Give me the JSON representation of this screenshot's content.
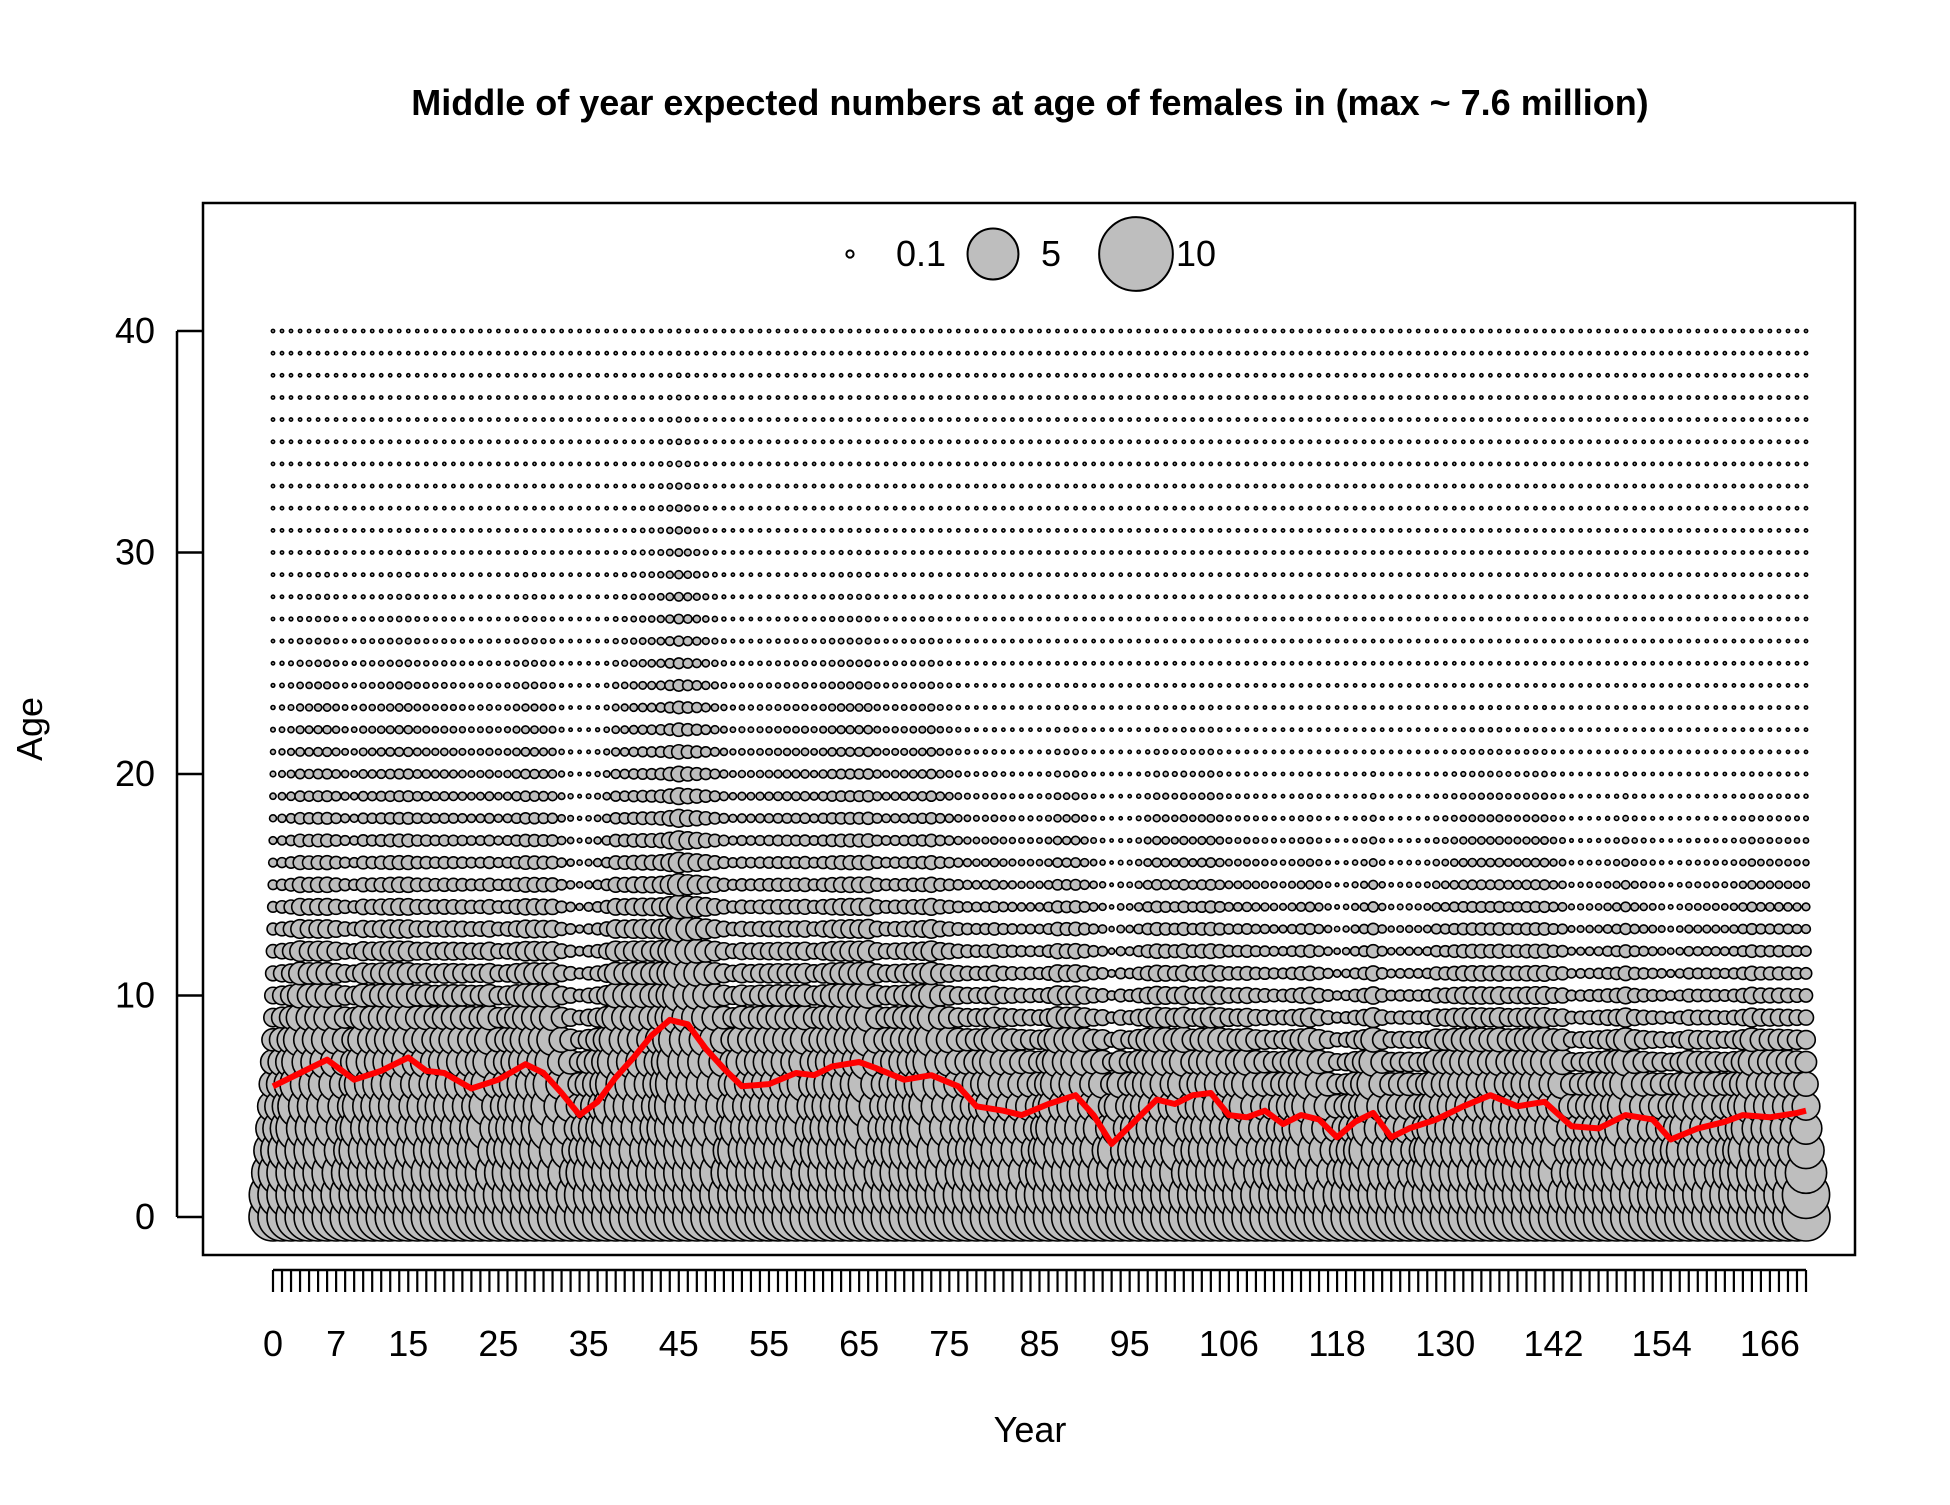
{
  "chart_data": {
    "type": "scatter",
    "subtype": "bubble",
    "title": "Middle of year expected numbers at age of females in (max ~ 7.6 million)",
    "xlabel": "Year",
    "ylabel": "Age",
    "xlim": [
      0,
      170
    ],
    "ylim": [
      -1.6,
      45.4
    ],
    "x_tick_labels": [
      "0",
      "7",
      "15",
      "25",
      "35",
      "45",
      "55",
      "65",
      "75",
      "85",
      "95",
      "106",
      "118",
      "130",
      "142",
      "154",
      "166"
    ],
    "y_ticks": [
      0,
      10,
      20,
      30,
      40
    ],
    "ages": {
      "min": 0,
      "max": 40
    },
    "legend": {
      "position": "top-center",
      "entries": [
        {
          "label": "0.1",
          "value": 0.1
        },
        {
          "label": "5",
          "value": 5
        },
        {
          "label": "10",
          "value": 10
        }
      ]
    },
    "bubble_fill": "#bebebe",
    "bubble_stroke": "#000000",
    "mean_age_color": "#ff0000",
    "mean_age_line": [
      [
        0,
        5.9
      ],
      [
        3,
        6.5
      ],
      [
        6,
        7.1
      ],
      [
        9,
        6.2
      ],
      [
        12,
        6.6
      ],
      [
        15,
        7.2
      ],
      [
        17,
        6.6
      ],
      [
        19,
        6.5
      ],
      [
        22,
        5.8
      ],
      [
        25,
        6.2
      ],
      [
        28,
        6.9
      ],
      [
        30,
        6.5
      ],
      [
        32,
        5.6
      ],
      [
        34,
        4.6
      ],
      [
        36,
        5.2
      ],
      [
        38,
        6.3
      ],
      [
        40,
        7.2
      ],
      [
        42,
        8.2
      ],
      [
        44,
        8.9
      ],
      [
        46,
        8.7
      ],
      [
        48,
        7.6
      ],
      [
        50,
        6.7
      ],
      [
        52,
        5.9
      ],
      [
        55,
        6.0
      ],
      [
        58,
        6.5
      ],
      [
        60,
        6.4
      ],
      [
        62,
        6.8
      ],
      [
        65,
        7.0
      ],
      [
        67,
        6.7
      ],
      [
        70,
        6.2
      ],
      [
        73,
        6.4
      ],
      [
        76,
        5.9
      ],
      [
        78,
        5.0
      ],
      [
        81,
        4.8
      ],
      [
        83,
        4.6
      ],
      [
        86,
        5.1
      ],
      [
        89,
        5.5
      ],
      [
        91,
        4.6
      ],
      [
        93,
        3.3
      ],
      [
        95,
        4.1
      ],
      [
        98,
        5.3
      ],
      [
        100,
        5.1
      ],
      [
        102,
        5.5
      ],
      [
        104,
        5.6
      ],
      [
        106,
        4.6
      ],
      [
        108,
        4.5
      ],
      [
        110,
        4.8
      ],
      [
        112,
        4.2
      ],
      [
        114,
        4.6
      ],
      [
        116,
        4.4
      ],
      [
        118,
        3.6
      ],
      [
        120,
        4.3
      ],
      [
        122,
        4.7
      ],
      [
        124,
        3.6
      ],
      [
        126,
        4.0
      ],
      [
        129,
        4.4
      ],
      [
        132,
        5.0
      ],
      [
        135,
        5.5
      ],
      [
        138,
        5.0
      ],
      [
        141,
        5.2
      ],
      [
        144,
        4.1
      ],
      [
        147,
        4.0
      ],
      [
        150,
        4.6
      ],
      [
        153,
        4.4
      ],
      [
        155,
        3.5
      ],
      [
        158,
        4.0
      ],
      [
        161,
        4.3
      ],
      [
        163,
        4.6
      ],
      [
        166,
        4.5
      ],
      [
        169,
        4.7
      ],
      [
        170,
        4.8
      ]
    ]
  }
}
